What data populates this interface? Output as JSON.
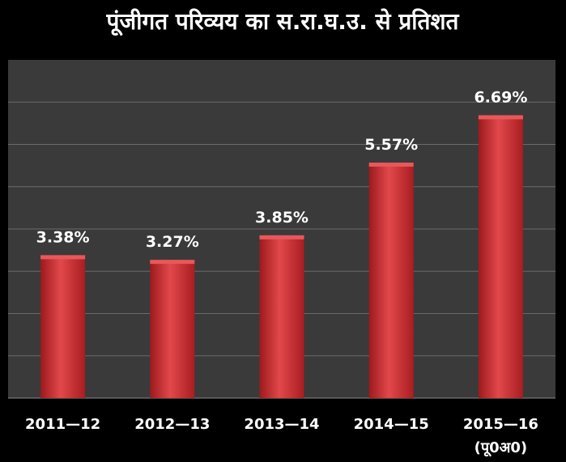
{
  "chart_data": {
    "type": "bar",
    "title": "पूंजीगत परिव्यय का स.रा.घ.उ. से प्रतिशत",
    "categories": [
      "2011—12",
      "2012—13",
      "2013—14",
      "2014—15",
      "2015—16"
    ],
    "category_sublabels": [
      "",
      "",
      "",
      "",
      "(पू0अ0)"
    ],
    "values": [
      3.38,
      3.27,
      3.85,
      5.57,
      6.69
    ],
    "data_labels": [
      "3.38%",
      "3.27%",
      "3.85%",
      "5.57%",
      "6.69%"
    ],
    "ylim": [
      0,
      8
    ],
    "grid": true,
    "legend": "none",
    "xlabel": "",
    "ylabel": "",
    "colors": {
      "background": "#000000",
      "plot_area": "#3a3a3a",
      "bar": "#c8282c",
      "bar_highlight": "#e8585a",
      "gridline": "#6a6a6a",
      "text": "#ffffff"
    }
  }
}
